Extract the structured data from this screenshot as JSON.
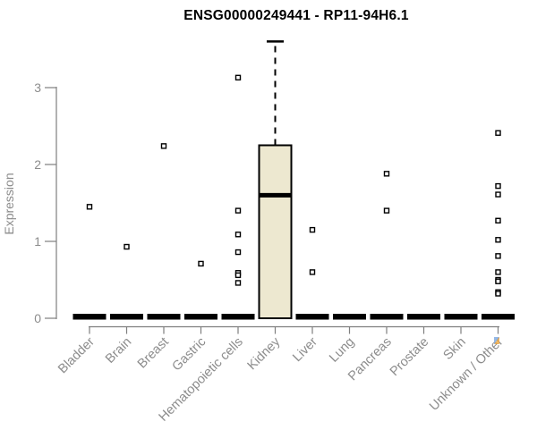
{
  "page": {
    "background": "#ffffff"
  },
  "chart_data": {
    "type": "boxplot",
    "title": "ENSG00000249441 - RP11-94H6.1",
    "ylabel": "Expression",
    "xlabel": "",
    "yticks": [
      0,
      1,
      2,
      3
    ],
    "ylim": [
      0,
      3.75
    ],
    "grid": false,
    "legend": "none",
    "colors": {
      "box_fill": "#ede8d0",
      "box_border": "#000000",
      "median": "#000000",
      "zero_bar": "#000000",
      "outlier_stroke": "#000000",
      "outlier_fill": "#ffffff",
      "axis": "#7f7f7f",
      "tick_label": "#8c8c8c",
      "title_text": "#000000"
    },
    "categories": [
      "Bladder",
      "Brain",
      "Breast",
      "Gastric",
      "Hematopoietic cells",
      "Kidney",
      "Liver",
      "Lung",
      "Pancreas",
      "Prostate",
      "Skin",
      "Unknown / Other"
    ],
    "series": [
      {
        "name": "Bladder",
        "q1": 0,
        "median": 0,
        "q3": 0,
        "whisker_low": 0,
        "whisker_high": 0,
        "outliers": [
          1.45
        ]
      },
      {
        "name": "Brain",
        "q1": 0,
        "median": 0,
        "q3": 0,
        "whisker_low": 0,
        "whisker_high": 0,
        "outliers": [
          0.93
        ]
      },
      {
        "name": "Breast",
        "q1": 0,
        "median": 0,
        "q3": 0,
        "whisker_low": 0,
        "whisker_high": 0,
        "outliers": [
          2.24
        ]
      },
      {
        "name": "Gastric",
        "q1": 0,
        "median": 0,
        "q3": 0,
        "whisker_low": 0,
        "whisker_high": 0,
        "outliers": [
          0.71
        ]
      },
      {
        "name": "Hematopoietic cells",
        "q1": 0,
        "median": 0,
        "q3": 0,
        "whisker_low": 0,
        "whisker_high": 0,
        "outliers": [
          3.13,
          1.4,
          1.09,
          0.86,
          0.59,
          0.56,
          0.46
        ]
      },
      {
        "name": "Kidney",
        "q1": 0,
        "median": 1.6,
        "q3": 2.25,
        "whisker_low": 0,
        "whisker_high": 3.6,
        "outliers": []
      },
      {
        "name": "Liver",
        "q1": 0,
        "median": 0,
        "q3": 0,
        "whisker_low": 0,
        "whisker_high": 0,
        "outliers": [
          1.15,
          0.6
        ]
      },
      {
        "name": "Lung",
        "q1": 0,
        "median": 0,
        "q3": 0,
        "whisker_low": 0,
        "whisker_high": 0,
        "outliers": []
      },
      {
        "name": "Pancreas",
        "q1": 0,
        "median": 0,
        "q3": 0,
        "whisker_low": 0,
        "whisker_high": 0,
        "outliers": [
          1.88,
          1.4
        ]
      },
      {
        "name": "Prostate",
        "q1": 0,
        "median": 0,
        "q3": 0,
        "whisker_low": 0,
        "whisker_high": 0,
        "outliers": []
      },
      {
        "name": "Skin",
        "q1": 0,
        "median": 0,
        "q3": 0,
        "whisker_low": 0,
        "whisker_high": 0,
        "outliers": []
      },
      {
        "name": "Unknown / Other",
        "q1": 0,
        "median": 0,
        "q3": 0,
        "whisker_low": 0,
        "whisker_high": 0,
        "outliers": [
          2.41,
          1.72,
          1.61,
          1.27,
          1.02,
          0.81,
          0.6,
          0.5,
          0.48,
          0.34,
          0.32
        ]
      }
    ]
  }
}
